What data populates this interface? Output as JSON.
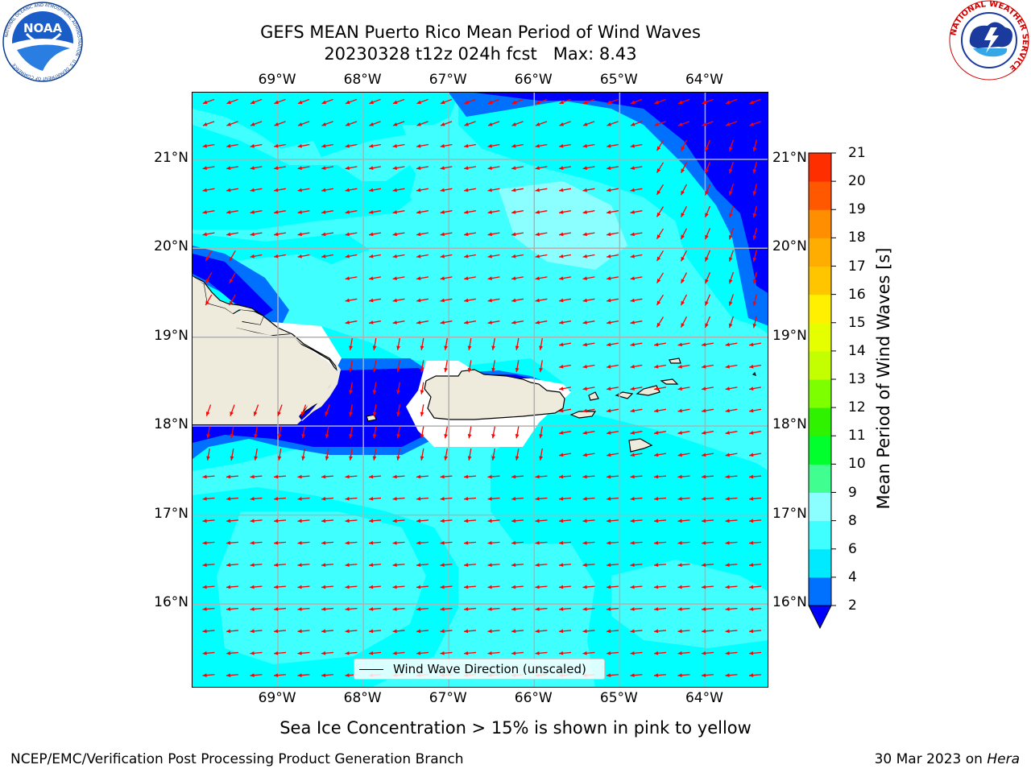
{
  "title": {
    "line1": "GEFS MEAN Puerto Rico Mean Period of Wind Waves",
    "line2": "20230328 t12z 024h fcst   Max: 8.43"
  },
  "map": {
    "lon_ticks": [
      "69°W",
      "68°W",
      "67°W",
      "66°W",
      "65°W",
      "64°W"
    ],
    "lat_ticks": [
      "21°N",
      "20°N",
      "19°N",
      "18°N",
      "17°N",
      "16°N"
    ],
    "lon_values": [
      -69,
      -68,
      -67,
      -66,
      -65,
      -64
    ],
    "lat_values": [
      21,
      20,
      19,
      18,
      17,
      16
    ],
    "extent": {
      "lon_min": -70,
      "lon_max": -63.25,
      "lat_min": 15.05,
      "lat_max": 21.75
    },
    "ocean_base_color": "#00ffff",
    "land_color": "#efebdc",
    "arrow_color": "#ff0000",
    "grid": true,
    "legend": {
      "label": "Wind Wave Direction (unscaled)",
      "position": "lower center"
    }
  },
  "colorbar": {
    "label": "Mean Period of Wind Waves [s]",
    "ticks": [
      "2",
      "4",
      "6",
      "8",
      "9",
      "10",
      "11",
      "12",
      "13",
      "14",
      "15",
      "16",
      "17",
      "18",
      "19",
      "20",
      "21"
    ],
    "colors": [
      "#0033ff",
      "#0070ff",
      "#00eaff",
      "#40ffff",
      "#8bffff",
      "#40ff90",
      "#00ff2c",
      "#2ef200",
      "#7dff00",
      "#c3ff00",
      "#e6ff00",
      "#ffef00",
      "#ffc600",
      "#ffad00",
      "#ff8f00",
      "#ff5800",
      "#ff2e00",
      "#ff0000"
    ],
    "under_color": "#0000ff",
    "extend": "min"
  },
  "subtitle": "Sea Ice Concentration > 15% is shown in pink to yellow",
  "footer": {
    "left": "NCEP/EMC/Verification Post Processing Product Generation Branch",
    "right_prefix": "30 Mar 2023 on ",
    "right_host": "Hera"
  },
  "logos": {
    "noaa": {
      "text": "NOAA",
      "ring_text": "NATIONAL OCEANIC AND ATMOSPHERIC ADMINISTRATION · U.S. DEPARTMENT OF COMMERCE"
    },
    "nws": {
      "ring_text": "NATIONAL WEATHER SERVICE"
    }
  }
}
